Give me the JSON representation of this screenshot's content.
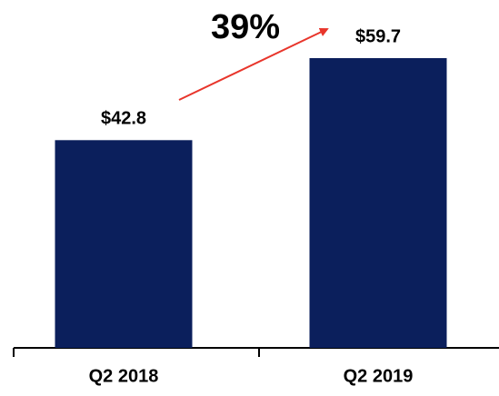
{
  "chart_data": {
    "type": "bar",
    "categories": [
      "Q2 2018",
      "Q2 2019"
    ],
    "values": [
      42.8,
      59.7
    ],
    "value_labels": [
      "$42.8",
      "$59.7"
    ],
    "color": "#0b1f5c",
    "annotation": "39%",
    "annotation_color": "#e8352b"
  }
}
